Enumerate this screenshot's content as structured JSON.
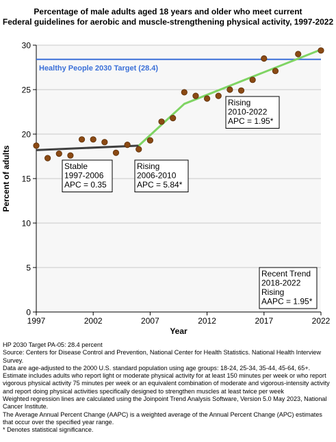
{
  "chart_data": {
    "type": "scatter",
    "title_lines": [
      "Percentage of male adults aged 18 years and older who meet current",
      "Federal guidelines for aerobic and muscle-strengthening physical activity, 1997-2022"
    ],
    "xlabel": "Year",
    "ylabel": "Percent of adults",
    "xlim": [
      1997,
      2022
    ],
    "ylim": [
      0,
      30
    ],
    "x_ticks": [
      1997,
      2002,
      2007,
      2012,
      2017,
      2022
    ],
    "y_ticks": [
      0,
      5,
      10,
      15,
      20,
      25,
      30
    ],
    "grid": true,
    "observed": {
      "x": [
        1997,
        1998,
        1999,
        2000,
        2001,
        2002,
        2003,
        2004,
        2005,
        2006,
        2007,
        2008,
        2009,
        2010,
        2011,
        2012,
        2013,
        2014,
        2015,
        2016,
        2017,
        2018,
        2020,
        2022
      ],
      "y": [
        18.7,
        17.3,
        17.8,
        17.6,
        19.4,
        19.4,
        19.1,
        17.9,
        18.8,
        18.3,
        19.3,
        21.4,
        21.8,
        24.7,
        24.3,
        24.0,
        24.3,
        25.0,
        24.9,
        26.1,
        28.5,
        27.1,
        29.0,
        29.4
      ]
    },
    "segments": [
      {
        "x": [
          1997,
          2006
        ],
        "y": [
          18.2,
          18.7
        ],
        "color": "#404040"
      },
      {
        "x": [
          2006,
          2010,
          2022
        ],
        "y": [
          18.7,
          23.4,
          29.5
        ],
        "color": "#7fd463"
      }
    ],
    "target": {
      "value": 28.4,
      "label": "Healthy People 2030 Target (28.4)",
      "color": "#3a6fd8"
    },
    "annotations": [
      {
        "lines": [
          "Stable",
          "1997-2006",
          "APC =  0.35"
        ]
      },
      {
        "lines": [
          "Rising",
          "2006-2010",
          "APC =  5.84*"
        ]
      },
      {
        "lines": [
          "Rising",
          "2010-2022",
          "APC =  1.95*"
        ]
      },
      {
        "lines": [
          "Recent Trend",
          "2018-2022",
          "Rising",
          "AAPC =  1.95*"
        ]
      }
    ],
    "colors": {
      "points": "#8b4a14",
      "point_edge": "#5a2e08",
      "grid": "#c8c8c8",
      "plot_bg": "#f7f7f7"
    }
  },
  "notes": [
    "HP 2030 Target PA-05: 28.4 percent",
    "Source: Centers for Disease Control and Prevention, National Center for Health Statistics. National Health Interview Survey.",
    "Data are age-adjusted to the 2000 U.S. standard population using age groups: 18-24, 25-34, 35-44, 45-64, 65+.",
    "Estimate includes adults who report light or moderate physical activity for at least 150 minutes per week or who report vigorous physical activity 75 minutes per week or an equivalent combination of moderate and vigorous-intensity activity and report doing physical activities specifically designed to strengthen muscles at least twice per week",
    "Weighted regression lines are calculated using the Joinpoint Trend Analysis Software, Version 5.0 May 2023, National Cancer Institute.",
    "The Average Annual Percent Change (AAPC) is a weighted average of the Annual Percent Change (APC) estimates that occur over the specified year range.",
    "* Denotes statistical significance."
  ]
}
